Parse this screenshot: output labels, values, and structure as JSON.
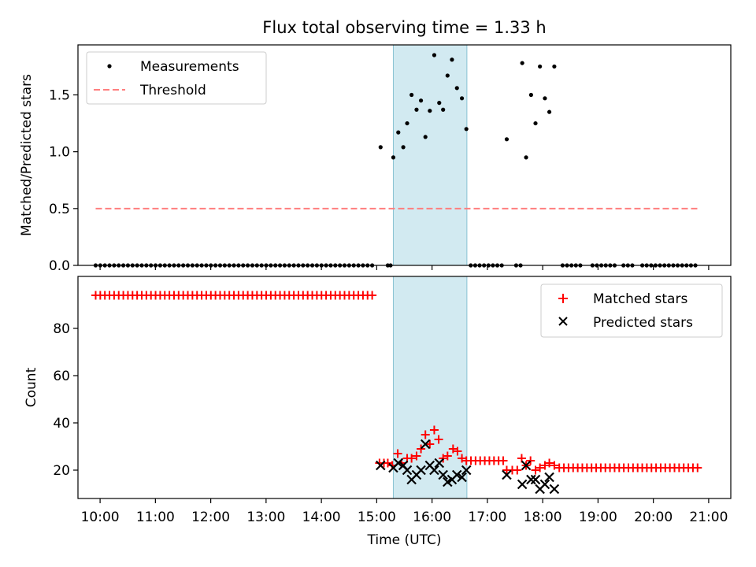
{
  "chart_data": [
    {
      "type": "scatter",
      "title": "Flux total observing time = 1.33 h",
      "xlabel": "",
      "ylabel": "Matched/Predicted stars",
      "xlim": [
        9.6,
        21.4
      ],
      "ylim": [
        0,
        1.94
      ],
      "yticks": [
        0.0,
        0.5,
        1.0,
        1.5
      ],
      "ytick_labels": [
        "0.0",
        "0.5",
        "1.0",
        "1.5"
      ],
      "legend_position": "upper-left",
      "highlight_band": {
        "x_start": 15.3,
        "x_end": 16.63,
        "color": "#add8e6"
      },
      "threshold": {
        "name": "Threshold",
        "value": 0.5,
        "x_start": 9.92,
        "x_end": 20.8,
        "color": "#ff7f7f",
        "style": "dashed"
      },
      "series": [
        {
          "name": "Measurements",
          "color": "#000000",
          "zeros_x_start": 9.92,
          "zeros_x_end": 15.0,
          "zeros_step": 0.0833,
          "zeros_x_extra": [
            15.2,
            15.25,
            16.7,
            16.78,
            16.86,
            16.94,
            17.02,
            17.1,
            17.18,
            17.26,
            17.52,
            17.6,
            18.36,
            18.44,
            18.52,
            18.6,
            18.68,
            18.9,
            18.98,
            19.06,
            19.14,
            19.22,
            19.3,
            19.46,
            19.54,
            19.62,
            19.8,
            19.88,
            19.96,
            20.04,
            20.12,
            20.2,
            20.28,
            20.36,
            20.44,
            20.52,
            20.6,
            20.68,
            20.76
          ],
          "points": [
            {
              "x": 15.07,
              "y": 1.04
            },
            {
              "x": 15.3,
              "y": 0.95
            },
            {
              "x": 15.39,
              "y": 1.17
            },
            {
              "x": 15.48,
              "y": 1.04
            },
            {
              "x": 15.55,
              "y": 1.25
            },
            {
              "x": 15.63,
              "y": 1.5
            },
            {
              "x": 15.72,
              "y": 1.37
            },
            {
              "x": 15.8,
              "y": 1.45
            },
            {
              "x": 15.88,
              "y": 1.13
            },
            {
              "x": 15.96,
              "y": 1.36
            },
            {
              "x": 16.04,
              "y": 1.85
            },
            {
              "x": 16.13,
              "y": 1.43
            },
            {
              "x": 16.2,
              "y": 1.37
            },
            {
              "x": 16.28,
              "y": 1.67
            },
            {
              "x": 16.36,
              "y": 1.81
            },
            {
              "x": 16.45,
              "y": 1.56
            },
            {
              "x": 16.54,
              "y": 1.47
            },
            {
              "x": 16.62,
              "y": 1.2
            },
            {
              "x": 17.35,
              "y": 1.11
            },
            {
              "x": 17.63,
              "y": 1.78
            },
            {
              "x": 17.7,
              "y": 0.95
            },
            {
              "x": 17.79,
              "y": 1.5
            },
            {
              "x": 17.87,
              "y": 1.25
            },
            {
              "x": 17.95,
              "y": 1.75
            },
            {
              "x": 18.04,
              "y": 1.47
            },
            {
              "x": 18.12,
              "y": 1.35
            },
            {
              "x": 18.21,
              "y": 1.75
            }
          ]
        }
      ]
    },
    {
      "type": "scatter",
      "title": "",
      "xlabel": "Time (UTC)",
      "ylabel": "Count",
      "xlim": [
        9.6,
        21.4
      ],
      "ylim": [
        8,
        102
      ],
      "yticks": [
        20,
        40,
        60,
        80
      ],
      "ytick_labels": [
        "20",
        "40",
        "60",
        "80"
      ],
      "xticks": [
        10,
        11,
        12,
        13,
        14,
        15,
        16,
        17,
        18,
        19,
        20,
        21
      ],
      "xtick_labels": [
        "10:00",
        "11:00",
        "12:00",
        "13:00",
        "14:00",
        "15:00",
        "16:00",
        "17:00",
        "18:00",
        "19:00",
        "20:00",
        "21:00"
      ],
      "legend_position": "upper-right",
      "highlight_band": {
        "x_start": 15.3,
        "x_end": 16.63,
        "color": "#add8e6"
      },
      "series": [
        {
          "name": "Matched stars",
          "color": "#ff0000",
          "marker": "+",
          "constant_runs": [
            {
              "x_start": 9.92,
              "x_end": 15.0,
              "step": 0.0833,
              "y": 94
            },
            {
              "x_start": 16.62,
              "x_end": 17.35,
              "step": 0.0833,
              "y": 24
            },
            {
              "x_start": 18.3,
              "x_end": 20.8,
              "step": 0.0833,
              "y": 21
            }
          ],
          "points": [
            {
              "x": 15.05,
              "y": 23
            },
            {
              "x": 15.13,
              "y": 23
            },
            {
              "x": 15.2,
              "y": 23
            },
            {
              "x": 15.28,
              "y": 22
            },
            {
              "x": 15.38,
              "y": 27
            },
            {
              "x": 15.45,
              "y": 23
            },
            {
              "x": 15.55,
              "y": 25
            },
            {
              "x": 15.63,
              "y": 25
            },
            {
              "x": 15.72,
              "y": 26
            },
            {
              "x": 15.8,
              "y": 29
            },
            {
              "x": 15.88,
              "y": 35
            },
            {
              "x": 15.96,
              "y": 31
            },
            {
              "x": 16.04,
              "y": 37
            },
            {
              "x": 16.12,
              "y": 33
            },
            {
              "x": 16.2,
              "y": 25
            },
            {
              "x": 16.28,
              "y": 26
            },
            {
              "x": 16.38,
              "y": 29
            },
            {
              "x": 16.46,
              "y": 28
            },
            {
              "x": 16.54,
              "y": 25
            },
            {
              "x": 17.35,
              "y": 20
            },
            {
              "x": 17.45,
              "y": 20
            },
            {
              "x": 17.54,
              "y": 20
            },
            {
              "x": 17.62,
              "y": 25
            },
            {
              "x": 17.7,
              "y": 22
            },
            {
              "x": 17.78,
              "y": 24
            },
            {
              "x": 17.87,
              "y": 20
            },
            {
              "x": 17.95,
              "y": 21
            },
            {
              "x": 18.04,
              "y": 22
            },
            {
              "x": 18.12,
              "y": 23
            },
            {
              "x": 18.21,
              "y": 22
            }
          ]
        },
        {
          "name": "Predicted stars",
          "color": "#000000",
          "marker": "x",
          "points": [
            {
              "x": 15.07,
              "y": 22
            },
            {
              "x": 15.3,
              "y": 21
            },
            {
              "x": 15.39,
              "y": 23
            },
            {
              "x": 15.48,
              "y": 22
            },
            {
              "x": 15.55,
              "y": 20
            },
            {
              "x": 15.63,
              "y": 16
            },
            {
              "x": 15.72,
              "y": 18
            },
            {
              "x": 15.8,
              "y": 20
            },
            {
              "x": 15.88,
              "y": 31
            },
            {
              "x": 15.96,
              "y": 22
            },
            {
              "x": 16.04,
              "y": 20
            },
            {
              "x": 16.13,
              "y": 23
            },
            {
              "x": 16.2,
              "y": 18
            },
            {
              "x": 16.28,
              "y": 15
            },
            {
              "x": 16.36,
              "y": 16
            },
            {
              "x": 16.45,
              "y": 18
            },
            {
              "x": 16.54,
              "y": 17
            },
            {
              "x": 16.62,
              "y": 20
            },
            {
              "x": 17.35,
              "y": 18
            },
            {
              "x": 17.63,
              "y": 14
            },
            {
              "x": 17.7,
              "y": 22
            },
            {
              "x": 17.79,
              "y": 16
            },
            {
              "x": 17.87,
              "y": 16
            },
            {
              "x": 17.95,
              "y": 12
            },
            {
              "x": 18.04,
              "y": 14
            },
            {
              "x": 18.12,
              "y": 17
            },
            {
              "x": 18.21,
              "y": 12
            }
          ]
        }
      ]
    }
  ]
}
